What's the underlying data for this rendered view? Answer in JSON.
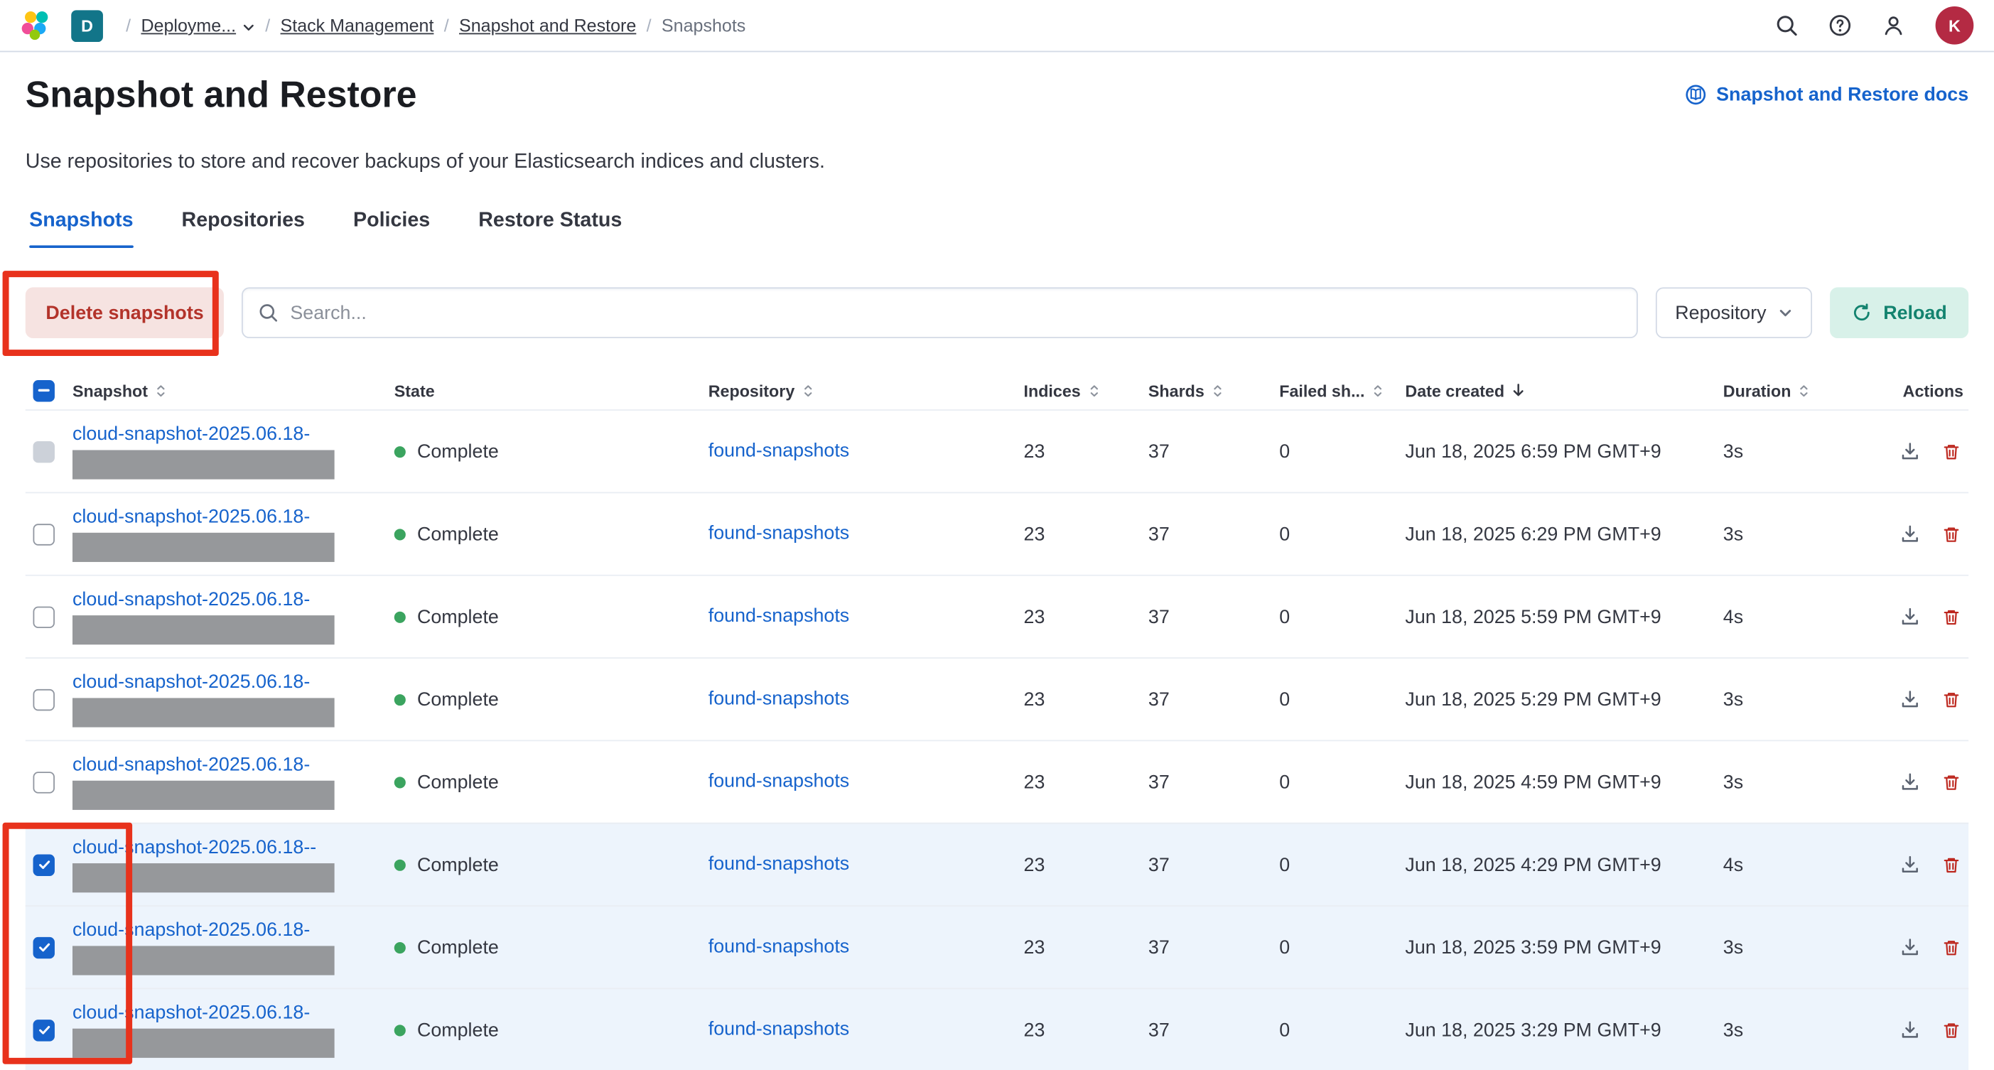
{
  "colors": {
    "link_blue": "#1663cc",
    "success_green": "#3ba45f",
    "danger_red": "#bd271e",
    "annotation_red": "#e8321c",
    "selected_row_bg": "#edf4fc",
    "reload_bg": "#d8f1e9",
    "reload_text": "#13836f",
    "delete_bg": "#f6e3e1",
    "delete_text": "#b3332a",
    "deployment_badge_bg": "#127589",
    "avatar_bg": "#b42a43",
    "redacted_bar": "#96989b"
  },
  "topbar": {
    "deployment_badge": "D",
    "breadcrumbs": [
      {
        "label": "Deployme..."
      },
      {
        "label": "Stack Management"
      },
      {
        "label": "Snapshot and Restore"
      },
      {
        "label": "Snapshots"
      }
    ],
    "icons": [
      "search-icon",
      "help-icon",
      "user-icon"
    ],
    "avatar_initial": "K"
  },
  "page": {
    "title": "Snapshot and Restore",
    "docs_link_label": "Snapshot and Restore docs",
    "description": "Use repositories to store and recover backups of your Elasticsearch indices and clusters.",
    "tabs": [
      {
        "label": "Snapshots",
        "active": true
      },
      {
        "label": "Repositories",
        "active": false
      },
      {
        "label": "Policies",
        "active": false
      },
      {
        "label": "Restore Status",
        "active": false
      }
    ]
  },
  "toolbar": {
    "delete_label": "Delete snapshots",
    "search_placeholder": "Search...",
    "repository_filter_label": "Repository",
    "reload_label": "Reload"
  },
  "table": {
    "columns": [
      {
        "label": "Snapshot",
        "sortable": true
      },
      {
        "label": "State",
        "sortable": false
      },
      {
        "label": "Repository",
        "sortable": true
      },
      {
        "label": "Indices",
        "sortable": true
      },
      {
        "label": "Shards",
        "sortable": true
      },
      {
        "label": "Failed sh...",
        "sortable": true
      },
      {
        "label": "Date created",
        "sortable": true,
        "sorted": "desc"
      },
      {
        "label": "Duration",
        "sortable": true
      },
      {
        "label": "Actions",
        "sortable": false
      }
    ],
    "select_all_state": "indeterminate",
    "rows": [
      {
        "name": "cloud-snapshot-2025.06.18-",
        "state": "Complete",
        "repository": "found-snapshots",
        "indices": "23",
        "shards": "37",
        "failed": "0",
        "date": "Jun 18, 2025 6:59 PM GMT+9",
        "duration": "3s",
        "checkbox": "gray",
        "selected": false
      },
      {
        "name": "cloud-snapshot-2025.06.18-",
        "state": "Complete",
        "repository": "found-snapshots",
        "indices": "23",
        "shards": "37",
        "failed": "0",
        "date": "Jun 18, 2025 6:29 PM GMT+9",
        "duration": "3s",
        "checkbox": "unchecked",
        "selected": false
      },
      {
        "name": "cloud-snapshot-2025.06.18-",
        "state": "Complete",
        "repository": "found-snapshots",
        "indices": "23",
        "shards": "37",
        "failed": "0",
        "date": "Jun 18, 2025 5:59 PM GMT+9",
        "duration": "4s",
        "checkbox": "unchecked",
        "selected": false
      },
      {
        "name": "cloud-snapshot-2025.06.18-",
        "state": "Complete",
        "repository": "found-snapshots",
        "indices": "23",
        "shards": "37",
        "failed": "0",
        "date": "Jun 18, 2025 5:29 PM GMT+9",
        "duration": "3s",
        "checkbox": "unchecked",
        "selected": false
      },
      {
        "name": "cloud-snapshot-2025.06.18-",
        "state": "Complete",
        "repository": "found-snapshots",
        "indices": "23",
        "shards": "37",
        "failed": "0",
        "date": "Jun 18, 2025 4:59 PM GMT+9",
        "duration": "3s",
        "checkbox": "unchecked",
        "selected": false
      },
      {
        "name": "cloud-snapshot-2025.06.18--",
        "state": "Complete",
        "repository": "found-snapshots",
        "indices": "23",
        "shards": "37",
        "failed": "0",
        "date": "Jun 18, 2025 4:29 PM GMT+9",
        "duration": "4s",
        "checkbox": "checked",
        "selected": true
      },
      {
        "name": "cloud-snapshot-2025.06.18-",
        "state": "Complete",
        "repository": "found-snapshots",
        "indices": "23",
        "shards": "37",
        "failed": "0",
        "date": "Jun 18, 2025 3:59 PM GMT+9",
        "duration": "3s",
        "checkbox": "checked",
        "selected": true
      },
      {
        "name": "cloud-snapshot-2025.06.18-",
        "state": "Complete",
        "repository": "found-snapshots",
        "indices": "23",
        "shards": "37",
        "failed": "0",
        "date": "Jun 18, 2025 3:29 PM GMT+9",
        "duration": "3s",
        "checkbox": "checked",
        "selected": true
      }
    ]
  }
}
